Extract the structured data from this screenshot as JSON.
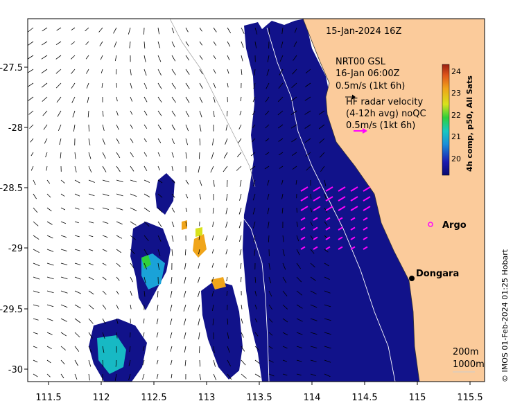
{
  "title": "15-Jan-2024 16Z",
  "model_info": {
    "line1": "NRT00 GSL",
    "line2": "16-Jan 06:00Z",
    "scale_label": "0.5m/s (1kt 6h)"
  },
  "radar_info": {
    "line1": "HF radar velocity",
    "line2": "(4-12h avg) noQC",
    "scale_label": "0.5m/s (1kt 6h)"
  },
  "colorbar": {
    "label": "4h comp, p50, All Sats",
    "ticks": [
      "24",
      "23",
      "22",
      "21",
      "20"
    ]
  },
  "axes": {
    "x_ticks": [
      "111.5",
      "112",
      "112.5",
      "113",
      "113.5",
      "114",
      "114.5",
      "115",
      "115.5"
    ],
    "y_ticks": [
      "-27.5",
      "-28",
      "-28.5",
      "-29",
      "-29.5",
      "-30"
    ]
  },
  "places": {
    "argo": "Argo",
    "dongara": "Dongara"
  },
  "depth_legend": {
    "d200": "200m",
    "d1000": "1000m"
  },
  "credit": "© IMOS 01-Feb-2024 01:25 Hobart",
  "colors": {
    "land": "#fbcb9b",
    "sea_low_sst": "#11128a",
    "radar_arrow": "#ff00ff",
    "argo_marker": "#ff00ff"
  }
}
